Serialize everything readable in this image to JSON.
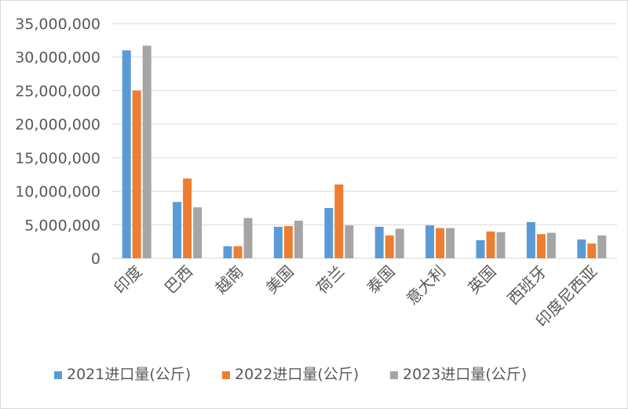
{
  "chart_data": {
    "type": "bar",
    "categories": [
      "印度",
      "巴西",
      "越南",
      "美国",
      "荷兰",
      "泰国",
      "意大利",
      "英国",
      "西班牙",
      "印度尼西亚"
    ],
    "series": [
      {
        "name": "2021进口量(公斤)",
        "color": "#5b9bd5",
        "values": [
          31000000,
          8400000,
          1800000,
          4700000,
          7500000,
          4700000,
          4900000,
          2700000,
          5400000,
          2800000
        ]
      },
      {
        "name": "2022进口量(公斤)",
        "color": "#ed7d31",
        "values": [
          25000000,
          11900000,
          1800000,
          4800000,
          11000000,
          3400000,
          4500000,
          4000000,
          3600000,
          2200000
        ]
      },
      {
        "name": "2023进口量(公斤)",
        "color": "#a5a5a5",
        "values": [
          31700000,
          7600000,
          6000000,
          5600000,
          4900000,
          4400000,
          4500000,
          3900000,
          3800000,
          3400000
        ]
      }
    ],
    "yticks": [
      "0",
      "5,000,000",
      "10,000,000",
      "15,000,000",
      "20,000,000",
      "25,000,000",
      "30,000,000",
      "35,000,000"
    ],
    "ylim": [
      0,
      35000000
    ],
    "grid": true,
    "legend_position": "bottom",
    "title": "",
    "xlabel": "",
    "ylabel": ""
  }
}
